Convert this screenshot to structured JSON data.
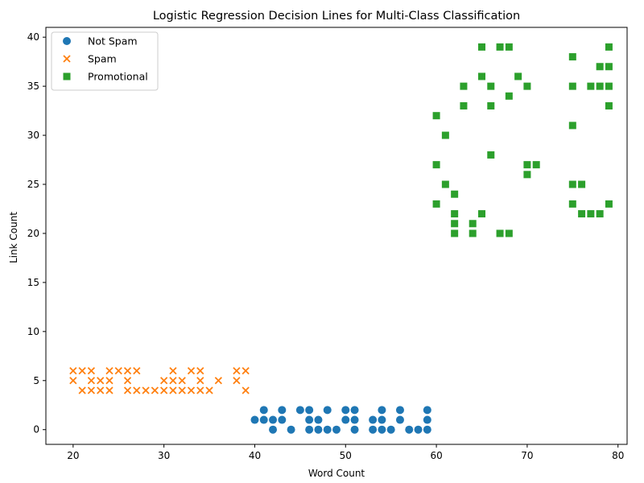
{
  "chart_data": {
    "type": "scatter",
    "title": "Logistic Regression Decision Lines for Multi-Class Classification",
    "xlabel": "Word Count",
    "ylabel": "Link Count",
    "xlim": [
      17,
      81
    ],
    "ylim": [
      -1.5,
      41
    ],
    "xticks": [
      20,
      30,
      40,
      50,
      60,
      70,
      80
    ],
    "yticks": [
      0,
      5,
      10,
      15,
      20,
      25,
      30,
      35,
      40
    ],
    "grid": false,
    "legend_position": "top-left",
    "series": [
      {
        "name": "Not Spam",
        "marker": "circle",
        "color": "#1f77b4",
        "points": [
          [
            40,
            1
          ],
          [
            41,
            1
          ],
          [
            41,
            2
          ],
          [
            42,
            1
          ],
          [
            42,
            0
          ],
          [
            43,
            2
          ],
          [
            43,
            1
          ],
          [
            44,
            0
          ],
          [
            45,
            2
          ],
          [
            46,
            2
          ],
          [
            46,
            1
          ],
          [
            46,
            0
          ],
          [
            47,
            1
          ],
          [
            47,
            0
          ],
          [
            48,
            2
          ],
          [
            48,
            0
          ],
          [
            49,
            0
          ],
          [
            50,
            2
          ],
          [
            50,
            1
          ],
          [
            51,
            2
          ],
          [
            51,
            1
          ],
          [
            51,
            0
          ],
          [
            53,
            1
          ],
          [
            53,
            0
          ],
          [
            54,
            2
          ],
          [
            54,
            1
          ],
          [
            54,
            0
          ],
          [
            55,
            0
          ],
          [
            56,
            2
          ],
          [
            56,
            1
          ],
          [
            57,
            0
          ],
          [
            58,
            0
          ],
          [
            59,
            2
          ],
          [
            59,
            1
          ],
          [
            59,
            0
          ]
        ]
      },
      {
        "name": "Spam",
        "marker": "x",
        "color": "#ff7f0e",
        "points": [
          [
            20,
            6
          ],
          [
            20,
            5
          ],
          [
            21,
            6
          ],
          [
            21,
            4
          ],
          [
            22,
            6
          ],
          [
            22,
            5
          ],
          [
            22,
            4
          ],
          [
            23,
            5
          ],
          [
            23,
            4
          ],
          [
            24,
            6
          ],
          [
            24,
            5
          ],
          [
            24,
            4
          ],
          [
            25,
            6
          ],
          [
            26,
            6
          ],
          [
            26,
            5
          ],
          [
            26,
            4
          ],
          [
            27,
            6
          ],
          [
            27,
            4
          ],
          [
            28,
            4
          ],
          [
            29,
            4
          ],
          [
            30,
            5
          ],
          [
            30,
            4
          ],
          [
            31,
            6
          ],
          [
            31,
            5
          ],
          [
            31,
            4
          ],
          [
            32,
            5
          ],
          [
            32,
            4
          ],
          [
            33,
            6
          ],
          [
            33,
            4
          ],
          [
            34,
            6
          ],
          [
            34,
            5
          ],
          [
            34,
            4
          ],
          [
            35,
            4
          ],
          [
            36,
            5
          ],
          [
            38,
            6
          ],
          [
            38,
            5
          ],
          [
            39,
            6
          ],
          [
            39,
            4
          ]
        ]
      },
      {
        "name": "Promotional",
        "marker": "square",
        "color": "#2ca02c",
        "points": [
          [
            60,
            32
          ],
          [
            60,
            27
          ],
          [
            60,
            23
          ],
          [
            61,
            30
          ],
          [
            61,
            25
          ],
          [
            62,
            24
          ],
          [
            62,
            22
          ],
          [
            62,
            21
          ],
          [
            62,
            20
          ],
          [
            63,
            35
          ],
          [
            63,
            33
          ],
          [
            64,
            21
          ],
          [
            64,
            20
          ],
          [
            65,
            39
          ],
          [
            65,
            36
          ],
          [
            65,
            22
          ],
          [
            66,
            35
          ],
          [
            66,
            33
          ],
          [
            66,
            28
          ],
          [
            67,
            39
          ],
          [
            67,
            20
          ],
          [
            68,
            39
          ],
          [
            68,
            34
          ],
          [
            68,
            20
          ],
          [
            69,
            36
          ],
          [
            70,
            35
          ],
          [
            70,
            27
          ],
          [
            70,
            26
          ],
          [
            71,
            27
          ],
          [
            75,
            38
          ],
          [
            75,
            35
          ],
          [
            75,
            31
          ],
          [
            75,
            25
          ],
          [
            75,
            23
          ],
          [
            76,
            25
          ],
          [
            76,
            22
          ],
          [
            77,
            35
          ],
          [
            77,
            22
          ],
          [
            78,
            37
          ],
          [
            78,
            35
          ],
          [
            78,
            22
          ],
          [
            79,
            39
          ],
          [
            79,
            37
          ],
          [
            79,
            35
          ],
          [
            79,
            33
          ],
          [
            79,
            23
          ]
        ]
      }
    ]
  }
}
